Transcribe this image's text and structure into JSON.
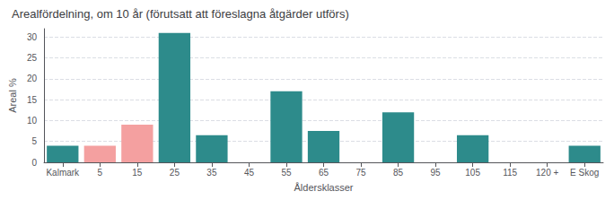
{
  "chart_data": {
    "type": "bar",
    "title": "Arealfördelning, om 10 år (förutsatt att föreslagna åtgärder utförs)",
    "xlabel": "Åldersklasser",
    "ylabel": "Areal %",
    "categories": [
      "Kalmark",
      "5",
      "15",
      "25",
      "35",
      "45",
      "55",
      "65",
      "75",
      "85",
      "95",
      "105",
      "115",
      "120 +",
      "E Skog"
    ],
    "values": [
      4,
      4,
      9,
      31,
      6.5,
      0,
      17,
      7.5,
      0,
      12,
      0,
      6.5,
      0,
      0,
      4
    ],
    "colors": [
      "#2d8b8b",
      "#f4a0a0",
      "#f4a0a0",
      "#2d8b8b",
      "#2d8b8b",
      "#2d8b8b",
      "#2d8b8b",
      "#2d8b8b",
      "#2d8b8b",
      "#2d8b8b",
      "#2d8b8b",
      "#2d8b8b",
      "#2d8b8b",
      "#2d8b8b",
      "#2d8b8b"
    ],
    "ylim": [
      0,
      32
    ],
    "yticks": [
      0,
      5,
      10,
      15,
      20,
      25,
      30
    ],
    "grid": true
  }
}
